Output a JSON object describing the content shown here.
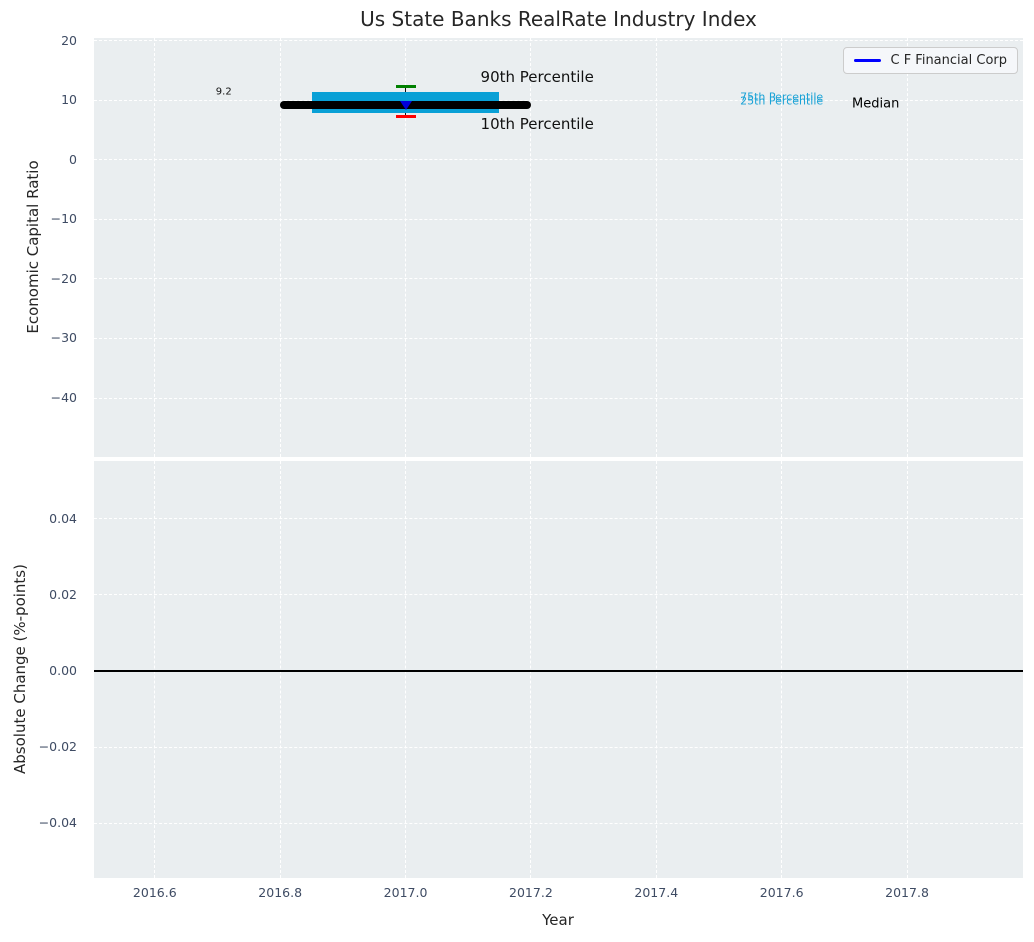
{
  "figure": {
    "title": "Us State Banks RealRate Industry Index",
    "legend": {
      "label": "C F Financial Corp",
      "line_color": "#0000ff",
      "position": "upper right"
    }
  },
  "chart_data": [
    {
      "type": "boxplot",
      "panel": "top",
      "title": "Us State Banks RealRate Industry Index",
      "xlabel": "",
      "ylabel": "Economic Capital Ratio",
      "grid": true,
      "background": "#eaeef0",
      "xlim": [
        2016.503,
        2017.985
      ],
      "ylim": [
        -49.9,
        20.42
      ],
      "xticks": [
        2016.6,
        2016.8,
        2017.0,
        2017.2,
        2017.4,
        2017.6,
        2017.8
      ],
      "show_xtick_labels": false,
      "yticks": [
        20,
        10,
        0,
        -10,
        -20,
        -30,
        -40
      ],
      "ytick_labels": [
        "20",
        "10",
        "0",
        "−10",
        "−20",
        "−30",
        "−40"
      ],
      "box": {
        "year": 2017.0,
        "median": 9.2,
        "p10": 7.2,
        "p25": 7.8,
        "p75": 11.3,
        "p90": 12.2,
        "company_name": "C F Financial Corp",
        "company_value": 9.1,
        "median_line_half_width": 0.2,
        "box_half_width": 0.1495,
        "cap_half_width": 0.016
      },
      "colors": {
        "box": "#09a0d6",
        "median_line": "#000000",
        "p90_cap": "#008000",
        "p10_cap": "#ff0000",
        "company_marker": "#0000dd",
        "whisker": "#111111"
      },
      "annotations": [
        {
          "name": "median-value-label",
          "text": "9.2",
          "x": 2016.71,
          "y": 11.3,
          "color": "#111111",
          "size": 10
        },
        {
          "name": "p90-label",
          "text": "90th Percentile",
          "x": 2017.21,
          "y": 13.8,
          "color": "#111111",
          "size": 15
        },
        {
          "name": "p10-label",
          "text": "10th Percentile",
          "x": 2017.21,
          "y": 6.0,
          "color": "#111111",
          "size": 15
        },
        {
          "name": "p75-label",
          "text": "75th Percentile",
          "x": 2017.6,
          "y": 10.45,
          "color": "#1aa2d6",
          "size": 11
        },
        {
          "name": "p25-label",
          "text": "25th Percentile",
          "x": 2017.6,
          "y": 9.85,
          "color": "#1aa2d6",
          "size": 11
        },
        {
          "name": "median-label",
          "text": "Median",
          "x": 2017.75,
          "y": 9.3,
          "color": "#000000",
          "size": 13
        }
      ]
    },
    {
      "type": "line",
      "panel": "bottom",
      "xlabel": "Year",
      "ylabel": "Absolute Change (%-points)",
      "grid": true,
      "background": "#eaeef0",
      "xlim": [
        2016.503,
        2017.985
      ],
      "ylim": [
        -0.0543,
        0.0551
      ],
      "xticks": [
        2016.6,
        2016.8,
        2017.0,
        2017.2,
        2017.4,
        2017.6,
        2017.8
      ],
      "xtick_labels": [
        "2016.6",
        "2016.8",
        "2017.0",
        "2017.2",
        "2017.4",
        "2017.6",
        "2017.8"
      ],
      "yticks": [
        0.04,
        0.02,
        0.0,
        -0.02,
        -0.04
      ],
      "ytick_labels": [
        "0.04",
        "0.02",
        "0.00",
        "−0.02",
        "−0.04"
      ],
      "zero_line": {
        "y": 0.0,
        "color": "#000000"
      },
      "series": []
    }
  ]
}
